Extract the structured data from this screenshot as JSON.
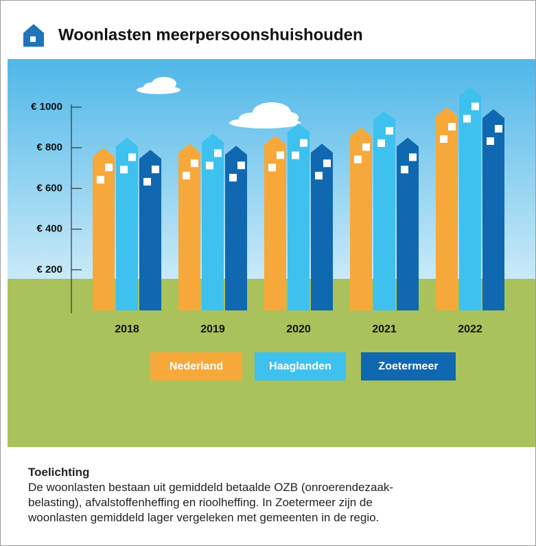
{
  "chart_data": {
    "type": "bar",
    "title": "Woonlasten meerpersoonshuishouden",
    "categories": [
      "2018",
      "2019",
      "2020",
      "2021",
      "2022"
    ],
    "series": [
      {
        "name": "Nederland",
        "color": "#f7a83a",
        "values": [
          800,
          820,
          860,
          900,
          1000
        ]
      },
      {
        "name": "Haaglanden",
        "color": "#3ec1ef",
        "values": [
          850,
          870,
          920,
          980,
          1100
        ]
      },
      {
        "name": "Zoetermeer",
        "color": "#0f68b0",
        "values": [
          790,
          810,
          820,
          850,
          990
        ]
      }
    ],
    "ylim": [
      0,
      1100
    ],
    "yticks": [
      {
        "value": 200,
        "label": "€ 200"
      },
      {
        "value": 400,
        "label": "€ 400"
      },
      {
        "value": 600,
        "label": "€ 600"
      },
      {
        "value": 800,
        "label": "€ 800"
      },
      {
        "value": 1000,
        "label": "€ 1000"
      }
    ]
  },
  "note": {
    "title": "Toelichting",
    "lines": [
      "De woonlasten bestaan uit gemiddeld betaalde OZB (onroerendezaak-",
      "belasting), afvalstoffenheffing en rioolheffing. In Zoetermeer zijn de",
      "woonlasten gemiddeld lager vergeleken met gemeenten in de regio."
    ]
  }
}
